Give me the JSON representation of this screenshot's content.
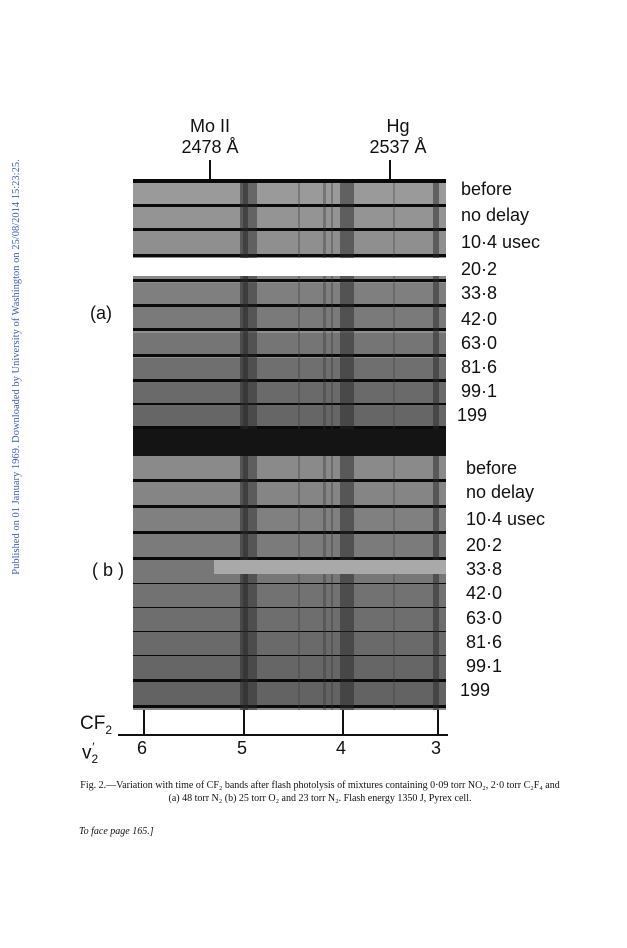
{
  "side_note": "Published on 01 January 1969. Downloaded by University of Washington on 25/08/2014 15:23:25.",
  "header_left": {
    "element": "Mo II",
    "wavelength": "2478 Å"
  },
  "header_right": {
    "element": "Hg",
    "wavelength": "2537 Å"
  },
  "panel_a": {
    "label": "(a)",
    "delays": [
      "before",
      "no delay",
      "10·4 usec",
      "20·2",
      "33·8",
      "42·0",
      "63·0",
      "81·6",
      "99·1",
      "199"
    ]
  },
  "panel_b": {
    "label": "( b )",
    "delays": [
      "before",
      "no delay",
      "10·4 usec",
      "20·2",
      "33·8",
      "42·0",
      "63·0",
      "81·6",
      "99·1",
      "199"
    ]
  },
  "axis": {
    "title_top": "CF",
    "title_top_sub": "2",
    "title_bottom": "v",
    "title_bottom_sub": "2",
    "title_bottom_sup": "′",
    "ticks": [
      "6",
      "5",
      "4",
      "3"
    ]
  },
  "caption": "Fig. 2.—Variation with time of CF₂ bands after flash photolysis of mixtures containing 0·09 torr NO₂, 2·0 torr C₂F₄ and (a) 48 torr N₂ (b) 25 torr O₂ and 23 torr N₂. Flash energy 1350 J, Pyrex cell.",
  "footer": "To face page 165.]",
  "colors": {
    "side_note": "#3b5fbf",
    "plate_dark": "#0a0a0a"
  }
}
